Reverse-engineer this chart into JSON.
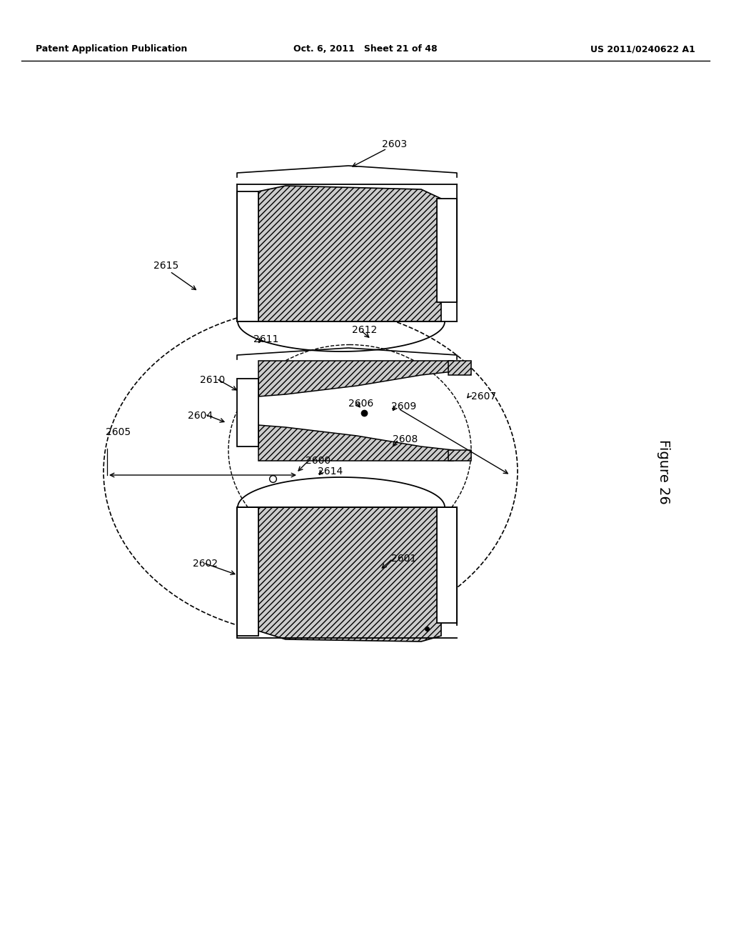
{
  "header_left": "Patent Application Publication",
  "header_mid": "Oct. 6, 2011   Sheet 21 of 48",
  "header_right": "US 2011/0240622 A1",
  "figure_label": "Figure 26",
  "bg_color": "#ffffff"
}
